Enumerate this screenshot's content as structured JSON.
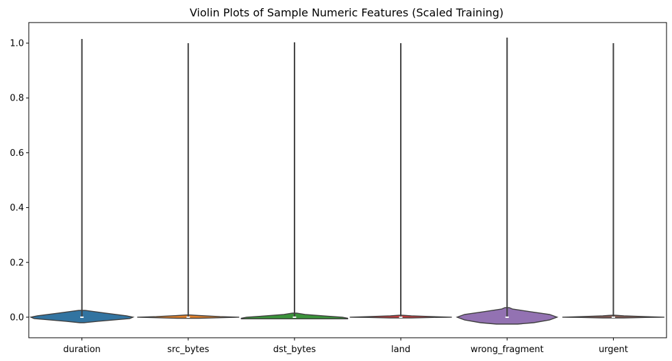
{
  "chart_data": {
    "type": "violin",
    "title": "Violin Plots of Sample Numeric Features (Scaled Training)",
    "xlabel": "",
    "ylabel": "",
    "ylim": [
      -0.075,
      1.075
    ],
    "yticks": [
      "0.0",
      "0.2",
      "0.4",
      "0.6",
      "0.8",
      "1.0"
    ],
    "ytick_values": [
      0,
      0.2,
      0.4,
      0.6,
      0.8,
      1.0
    ],
    "grid": false,
    "legend": "none",
    "categories": [
      "duration",
      "src_bytes",
      "dst_bytes",
      "land",
      "wrong_fragment",
      "urgent"
    ],
    "series": [
      {
        "category": "duration",
        "color": "#3274a1",
        "min": 0,
        "max": 1.015,
        "median": 0,
        "profile": [
          [
            -0.02,
            0.02
          ],
          [
            -0.015,
            0.15
          ],
          [
            -0.005,
            0.45
          ],
          [
            0.0,
            0.48
          ],
          [
            0.005,
            0.42
          ],
          [
            0.015,
            0.22
          ],
          [
            0.025,
            0.03
          ]
        ]
      },
      {
        "category": "src_bytes",
        "color": "#e1812c",
        "min": 0,
        "max": 1.0,
        "median": 0,
        "profile": [
          [
            -0.004,
            0.1
          ],
          [
            -0.002,
            0.3
          ],
          [
            0.0,
            0.48
          ],
          [
            0.002,
            0.3
          ],
          [
            0.006,
            0.1
          ],
          [
            0.008,
            0.02
          ]
        ]
      },
      {
        "category": "dst_bytes",
        "color": "#3a923a",
        "min": 0,
        "max": 1.003,
        "median": 0,
        "profile": [
          [
            -0.006,
            0.5
          ],
          [
            -0.004,
            0.5
          ],
          [
            0.0,
            0.45
          ],
          [
            0.004,
            0.3
          ],
          [
            0.01,
            0.1
          ],
          [
            0.015,
            0.02
          ]
        ]
      },
      {
        "category": "land",
        "color": "#c03d3e",
        "min": 0,
        "max": 1.0,
        "median": 0,
        "profile": [
          [
            -0.003,
            0.1
          ],
          [
            -0.001,
            0.3
          ],
          [
            0.0,
            0.48
          ],
          [
            0.002,
            0.3
          ],
          [
            0.005,
            0.1
          ],
          [
            0.007,
            0.02
          ]
        ]
      },
      {
        "category": "wrong_fragment",
        "color": "#9372b2",
        "min": 0,
        "max": 1.02,
        "median": 0,
        "profile": [
          [
            -0.025,
            0.1
          ],
          [
            -0.02,
            0.25
          ],
          [
            -0.01,
            0.4
          ],
          [
            0.0,
            0.47
          ],
          [
            0.01,
            0.4
          ],
          [
            0.02,
            0.22
          ],
          [
            0.03,
            0.05
          ],
          [
            0.035,
            0.02
          ]
        ]
      },
      {
        "category": "urgent",
        "color": "#845b53",
        "min": 0,
        "max": 1.0,
        "median": 0,
        "profile": [
          [
            -0.003,
            0.1
          ],
          [
            -0.001,
            0.3
          ],
          [
            0.0,
            0.48
          ],
          [
            0.002,
            0.3
          ],
          [
            0.005,
            0.1
          ],
          [
            0.007,
            0.02
          ]
        ]
      }
    ]
  }
}
